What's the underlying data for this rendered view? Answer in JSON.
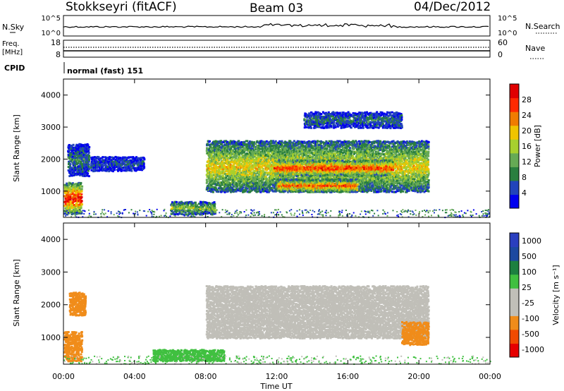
{
  "header": {
    "station": "Stokkseyri (fitACF)",
    "beam": "Beam 03",
    "date": "04/Dec/2012"
  },
  "summary": {
    "nsky_label": "N.Sky",
    "nsky_ticks": [
      "10^5",
      "10^0"
    ],
    "nsearch_label": "N.Search",
    "nsearch_ticks": [
      "10^5",
      "10^0"
    ],
    "freq_label": "Freq.",
    "freq_unit": "[MHz]",
    "freq_ticks": [
      "18",
      "8"
    ],
    "nave_label": "Nave",
    "nave_ticks": [
      "60",
      "0"
    ],
    "cpid_label": "CPID",
    "cpid_text": "normal (fast) 151"
  },
  "colors": {
    "power": [
      "#0000ee",
      "#2244bb",
      "#2a7f3f",
      "#66aa55",
      "#a7d02e",
      "#f0c400",
      "#f07c00",
      "#ff2a00",
      "#e00000"
    ],
    "velocity": [
      "#e60000",
      "#f14a00",
      "#f08c1a",
      "#c0bfb8",
      "#c0bfb8",
      "#40c040",
      "#1c8040",
      "#1c49a0",
      "#2a3fbf"
    ]
  },
  "chart_data": [
    {
      "type": "heatmap",
      "panel": "power",
      "xlabel": "",
      "ylabel": "Slant Range [km]",
      "ylim": [
        180,
        4500
      ],
      "xlim_hours": [
        0,
        24
      ],
      "y_ticks": [
        "1000",
        "2000",
        "3000",
        "4000"
      ],
      "colorbar": {
        "label": "Power [dB]",
        "ticks": [
          "4",
          "8",
          "12",
          "16",
          "20",
          "24",
          "28"
        ],
        "range": [
          0,
          32
        ]
      },
      "regions": [
        {
          "t": [
            0.0,
            1.0
          ],
          "r": [
            300,
            1300
          ],
          "level": 28
        },
        {
          "t": [
            0.2,
            1.4
          ],
          "r": [
            1500,
            2500
          ],
          "level": 8
        },
        {
          "t": [
            1.5,
            4.5
          ],
          "r": [
            1650,
            2100
          ],
          "level": 6
        },
        {
          "t": [
            6.0,
            8.5
          ],
          "r": [
            300,
            700
          ],
          "level": 16
        },
        {
          "t": [
            8.0,
            20.5
          ],
          "r": [
            1000,
            2600
          ],
          "level": 18
        },
        {
          "t": [
            11.8,
            18.5
          ],
          "r": [
            1500,
            2000
          ],
          "level": 28
        },
        {
          "t": [
            12.0,
            16.5
          ],
          "r": [
            1000,
            1400
          ],
          "level": 26
        },
        {
          "t": [
            13.5,
            19.0
          ],
          "r": [
            3000,
            3500
          ],
          "level": 8
        }
      ]
    },
    {
      "type": "heatmap",
      "panel": "velocity",
      "xlabel": "Time UT",
      "ylabel": "Slant Range [km]",
      "ylim": [
        180,
        4500
      ],
      "xlim_hours": [
        0,
        24
      ],
      "x_ticks": [
        "00:00",
        "04:00",
        "08:00",
        "12:00",
        "16:00",
        "20:00",
        "00:00"
      ],
      "y_ticks": [
        "1000",
        "2000",
        "3000",
        "4000"
      ],
      "colorbar": {
        "label": "Velocity [m s⁻¹]",
        "ticks": [
          "1000",
          "500",
          "100",
          "25",
          "-25",
          "-100",
          "-500",
          "-1000"
        ]
      },
      "regions": [
        {
          "t": [
            0.0,
            1.0
          ],
          "r": [
            300,
            1200
          ],
          "vel": -300
        },
        {
          "t": [
            0.3,
            1.2
          ],
          "r": [
            1700,
            2400
          ],
          "vel": -150
        },
        {
          "t": [
            5.0,
            9.0
          ],
          "r": [
            300,
            650
          ],
          "vel": 80
        },
        {
          "t": [
            8.0,
            20.5
          ],
          "r": [
            1000,
            2600
          ],
          "vel": 0
        },
        {
          "t": [
            19.0,
            20.5
          ],
          "r": [
            800,
            1500
          ],
          "vel": -150
        }
      ]
    }
  ]
}
